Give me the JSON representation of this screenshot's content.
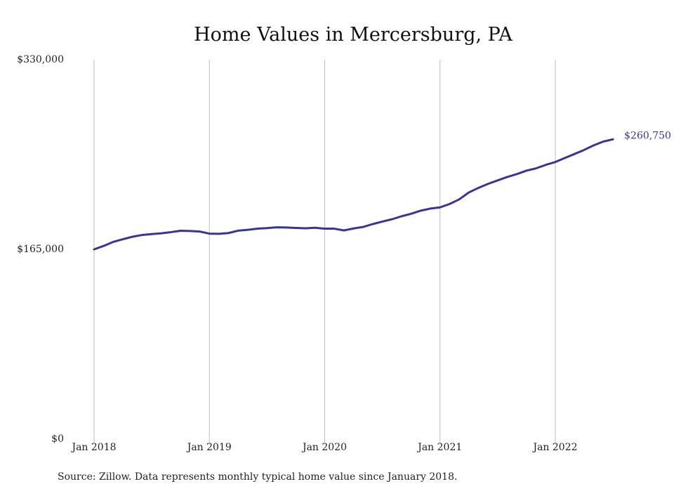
{
  "chart_data": {
    "type": "line",
    "title": "Home Values in Mercersburg, PA",
    "source_note": "Source: Zillow. Data represents monthly typical home value since January 2018.",
    "xlabel": "",
    "ylabel": "",
    "ylim": [
      0,
      330000
    ],
    "y_ticks": [
      {
        "value": 0,
        "label": "$0"
      },
      {
        "value": 165000,
        "label": "$165,000"
      },
      {
        "value": 330000,
        "label": "$330,000"
      }
    ],
    "x_ticks": [
      {
        "value": "2018-01",
        "label": "Jan 2018"
      },
      {
        "value": "2019-01",
        "label": "Jan 2019"
      },
      {
        "value": "2020-01",
        "label": "Jan 2020"
      },
      {
        "value": "2021-01",
        "label": "Jan 2021"
      },
      {
        "value": "2022-01",
        "label": "Jan 2022"
      }
    ],
    "grid": {
      "vertical": true,
      "horizontal": false
    },
    "legend": "none",
    "line_color": "#3a3497",
    "end_label": "$260,750",
    "series": [
      {
        "x": [
          "2018-01",
          "2018-02",
          "2018-03",
          "2018-04",
          "2018-05",
          "2018-06",
          "2018-07",
          "2018-08",
          "2018-09",
          "2018-10",
          "2018-11",
          "2018-12",
          "2019-01",
          "2019-02",
          "2019-03",
          "2019-04",
          "2019-05",
          "2019-06",
          "2019-07",
          "2019-08",
          "2019-09",
          "2019-10",
          "2019-11",
          "2019-12",
          "2020-01",
          "2020-02",
          "2020-03",
          "2020-04",
          "2020-05",
          "2020-06",
          "2020-07",
          "2020-08",
          "2020-09",
          "2020-10",
          "2020-11",
          "2020-12",
          "2021-01",
          "2021-02",
          "2021-03",
          "2021-04",
          "2021-05",
          "2021-06",
          "2021-07",
          "2021-08",
          "2021-09",
          "2021-10",
          "2021-11",
          "2021-12",
          "2022-01",
          "2022-02",
          "2022-03",
          "2022-04",
          "2022-05",
          "2022-06",
          "2022-07"
        ],
        "values": [
          165000,
          168000,
          171500,
          173800,
          176000,
          177500,
          178300,
          179000,
          180000,
          181200,
          181000,
          180500,
          178700,
          178500,
          179200,
          181300,
          182000,
          183000,
          183500,
          184200,
          184000,
          183600,
          183300,
          183800,
          183000,
          183000,
          181500,
          183200,
          184500,
          187000,
          189200,
          191200,
          193800,
          196000,
          198700,
          200500,
          201500,
          204500,
          208500,
          214500,
          218500,
          222000,
          225000,
          228000,
          230500,
          233500,
          235500,
          238500,
          241000,
          244500,
          248000,
          251500,
          255500,
          258800,
          260750
        ]
      }
    ]
  }
}
